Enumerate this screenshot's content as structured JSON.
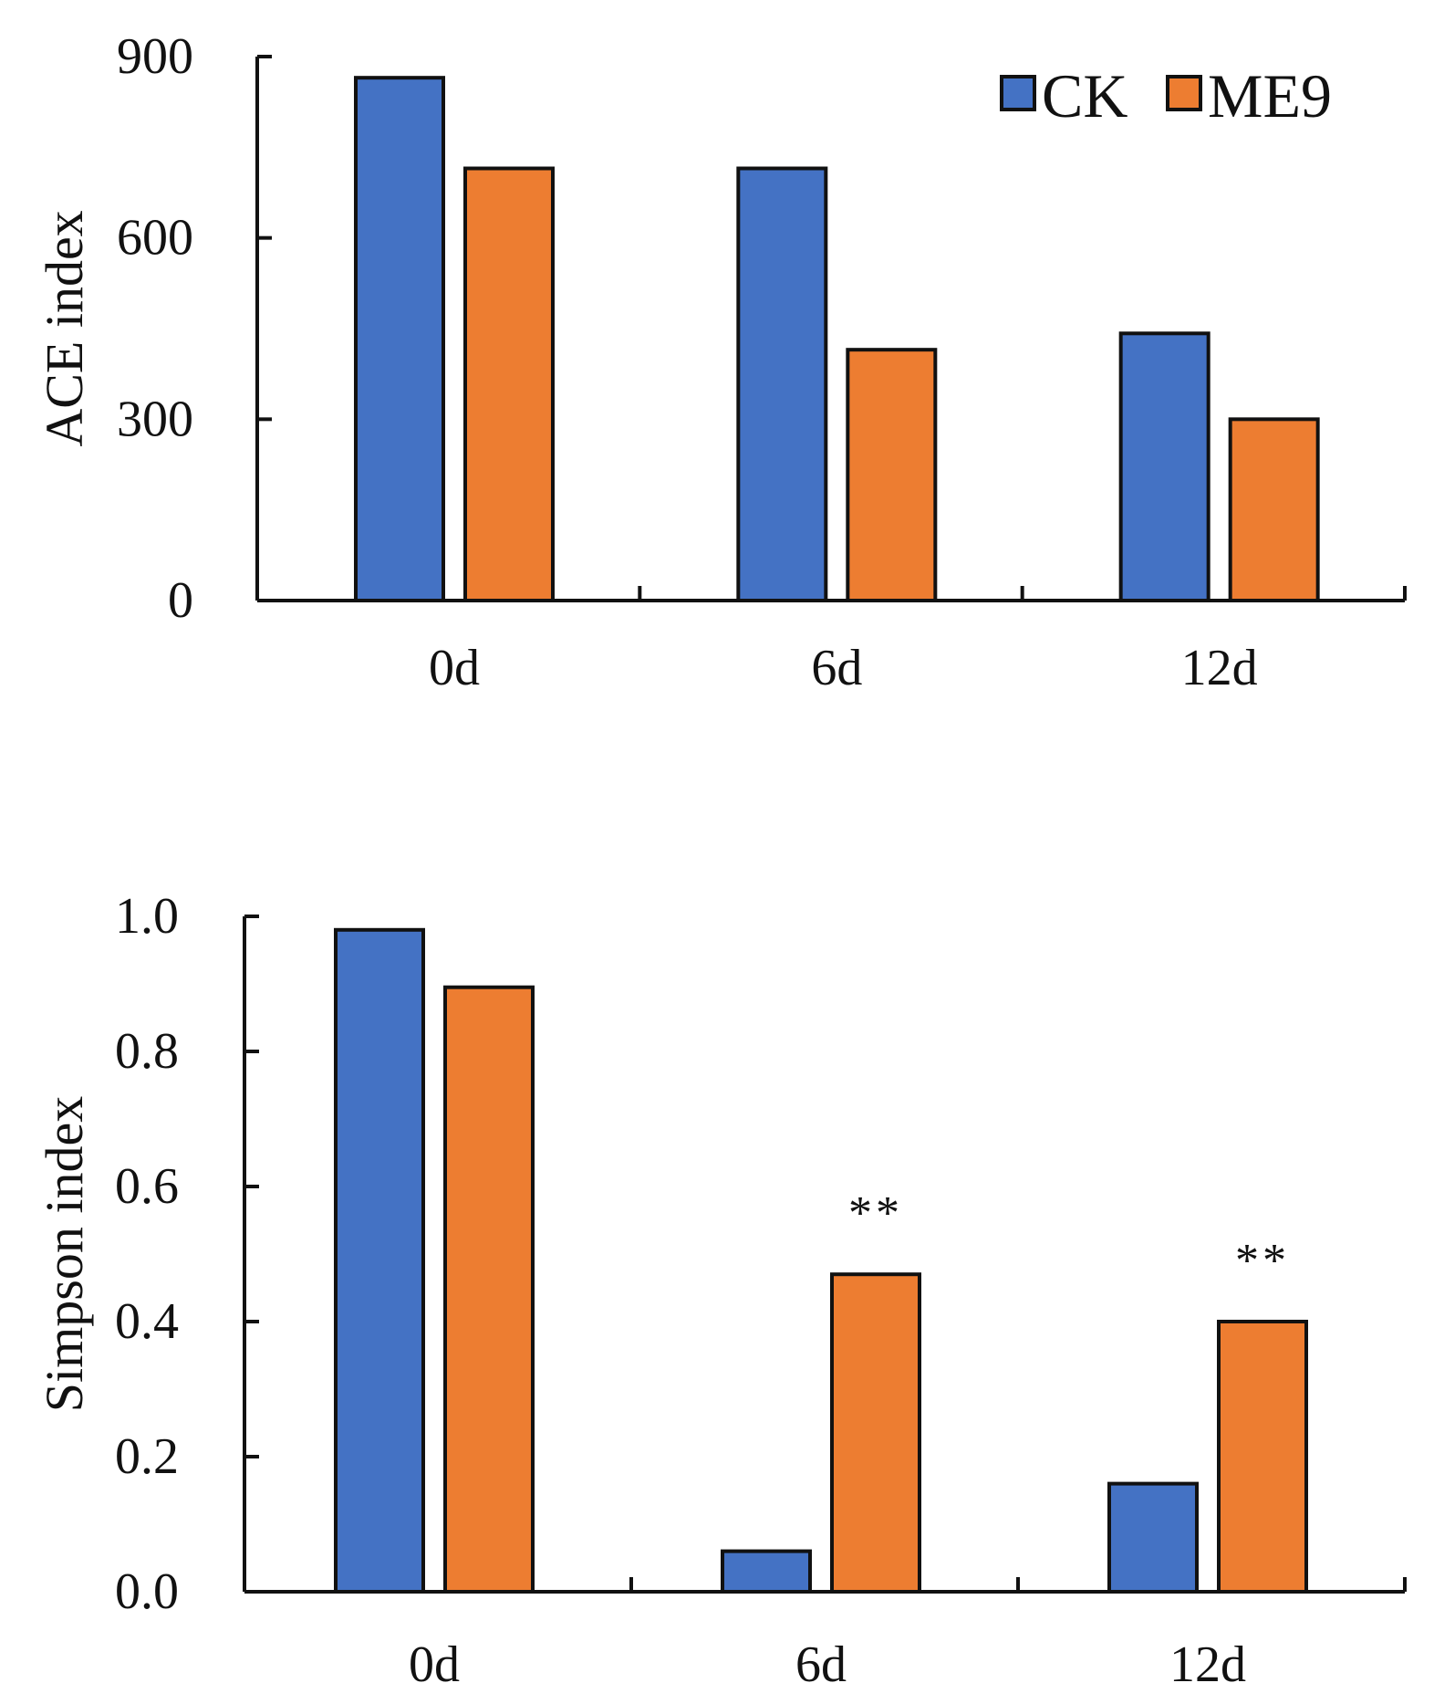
{
  "legend": {
    "entries": [
      {
        "name": "CK",
        "color": "#4472c4"
      },
      {
        "name": "ME9",
        "color": "#ed7d31"
      }
    ]
  },
  "chart_data": [
    {
      "type": "bar",
      "title": "",
      "xlabel": "",
      "ylabel": "ACE index",
      "categories": [
        "0d",
        "6d",
        "12d"
      ],
      "ylim": [
        0,
        900
      ],
      "yticks": [
        0,
        300,
        600,
        900
      ],
      "ytick_labels": [
        "0",
        "300",
        "600",
        "900"
      ],
      "series": [
        {
          "name": "CK",
          "color": "#4472c4",
          "values": [
            865,
            715,
            442
          ]
        },
        {
          "name": "ME9",
          "color": "#ed7d31",
          "values": [
            715,
            415,
            300
          ]
        }
      ],
      "annotations": [],
      "legend": "top-right",
      "grid": false
    },
    {
      "type": "bar",
      "title": "",
      "xlabel": "",
      "ylabel": "Simpson index",
      "categories": [
        "0d",
        "6d",
        "12d"
      ],
      "ylim": [
        0,
        1.0
      ],
      "yticks": [
        0,
        0.2,
        0.4,
        0.6,
        0.8,
        1.0
      ],
      "ytick_labels": [
        "0.0",
        "0.2",
        "0.4",
        "0.6",
        "0.8",
        "1.0"
      ],
      "series": [
        {
          "name": "CK",
          "color": "#4472c4",
          "values": [
            0.98,
            0.06,
            0.16
          ]
        },
        {
          "name": "ME9",
          "color": "#ed7d31",
          "values": [
            0.895,
            0.47,
            0.4
          ]
        }
      ],
      "annotations": [
        {
          "category": "6d",
          "series": "ME9",
          "text": "**"
        },
        {
          "category": "12d",
          "series": "ME9",
          "text": "**"
        }
      ],
      "legend": "none",
      "grid": false
    }
  ]
}
